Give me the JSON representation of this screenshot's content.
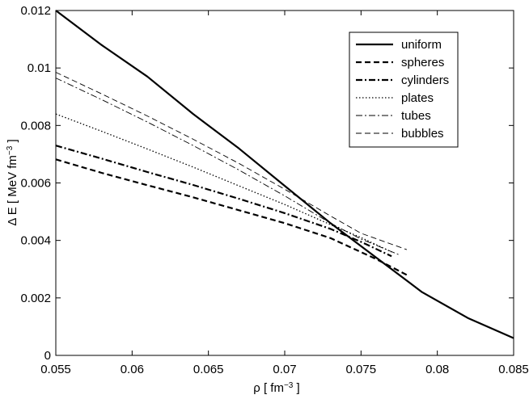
{
  "chart_data": {
    "type": "line",
    "title": "",
    "xlabel": {
      "main": "ρ [ fm",
      "sup": "−3",
      "tail": " ]"
    },
    "ylabel": {
      "main": "Δ E  [ MeV fm",
      "sup": "−3",
      "tail": " ]"
    },
    "xlim": [
      0.055,
      0.085
    ],
    "ylim": [
      0,
      0.012
    ],
    "xticks": [
      0.055,
      0.06,
      0.065,
      0.07,
      0.075,
      0.08,
      0.085
    ],
    "xtick_labels": [
      "0.055",
      "0.06",
      "0.065",
      "0.07",
      "0.075",
      "0.08",
      "0.085"
    ],
    "yticks": [
      0,
      0.002,
      0.004,
      0.006,
      0.008,
      0.01,
      0.012
    ],
    "ytick_labels": [
      "0",
      "0.002",
      "0.004",
      "0.006",
      "0.008",
      "0.01",
      "0.012"
    ],
    "grid": false,
    "legend_position": "top-right",
    "series": [
      {
        "name": "uniform",
        "style": "solid-thick",
        "x": [
          0.055,
          0.058,
          0.061,
          0.064,
          0.067,
          0.07,
          0.073,
          0.076,
          0.079,
          0.082,
          0.085
        ],
        "y": [
          0.012,
          0.0108,
          0.0097,
          0.0084,
          0.0072,
          0.0059,
          0.0046,
          0.0034,
          0.0022,
          0.0013,
          0.0006
        ]
      },
      {
        "name": "spheres",
        "style": "dashed-thick",
        "x": [
          0.055,
          0.058,
          0.061,
          0.064,
          0.067,
          0.07,
          0.073,
          0.076,
          0.078
        ],
        "y": [
          0.00682,
          0.00635,
          0.00592,
          0.0055,
          0.00505,
          0.0046,
          0.00408,
          0.00335,
          0.0028
        ]
      },
      {
        "name": "cylinders",
        "style": "dashdot-thick",
        "x": [
          0.055,
          0.058,
          0.061,
          0.064,
          0.067,
          0.07,
          0.073,
          0.075,
          0.077
        ],
        "y": [
          0.0073,
          0.00685,
          0.00638,
          0.00593,
          0.00545,
          0.00495,
          0.0044,
          0.00395,
          0.00345
        ]
      },
      {
        "name": "plates",
        "style": "dotted",
        "x": [
          0.055,
          0.058,
          0.061,
          0.064,
          0.067,
          0.07,
          0.073,
          0.075,
          0.077
        ],
        "y": [
          0.0084,
          0.0078,
          0.00718,
          0.00655,
          0.0059,
          0.00525,
          0.00455,
          0.0041,
          0.0036
        ]
      },
      {
        "name": "tubes",
        "style": "dashdot-thin",
        "x": [
          0.055,
          0.058,
          0.061,
          0.064,
          0.067,
          0.07,
          0.073,
          0.075,
          0.0775
        ],
        "y": [
          0.00965,
          0.0089,
          0.00812,
          0.0073,
          0.00645,
          0.00555,
          0.0046,
          0.00405,
          0.0035
        ]
      },
      {
        "name": "bubbles",
        "style": "dashed-thin",
        "x": [
          0.055,
          0.058,
          0.061,
          0.064,
          0.067,
          0.07,
          0.073,
          0.075,
          0.078
        ],
        "y": [
          0.00985,
          0.0091,
          0.00833,
          0.00752,
          0.00668,
          0.00578,
          0.00485,
          0.00425,
          0.00368
        ]
      }
    ]
  }
}
